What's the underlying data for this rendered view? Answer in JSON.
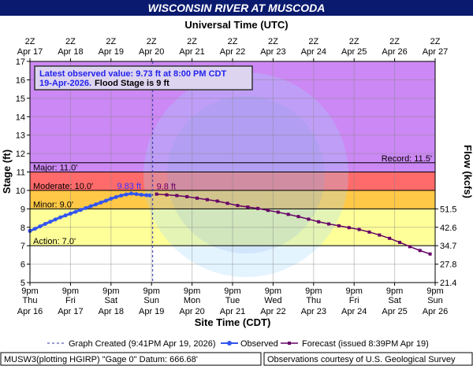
{
  "chart_data": {
    "type": "hydrograph",
    "title": "WISCONSIN RIVER AT MUSCODA",
    "top_axis_label": "Universal Time (UTC)",
    "x_label": "Site Time (CDT)",
    "y_label": "Stage (ft)",
    "xlim": [
      "2026-04-16T21:00",
      "2026-04-26T21:00"
    ],
    "xticks": [
      {
        "value": "2026-04-16T21:00",
        "label": "9pm",
        "day": "Thu",
        "date": "Apr 16",
        "utc": "2Z",
        "utc_date": "Apr 17"
      },
      {
        "value": "2026-04-17T21:00",
        "label": "9pm",
        "day": "Fri",
        "date": "Apr 17",
        "utc": "2Z",
        "utc_date": "Apr 18"
      },
      {
        "value": "2026-04-18T21:00",
        "label": "9pm",
        "day": "Sat",
        "date": "Apr 18",
        "utc": "2Z",
        "utc_date": "Apr 19"
      },
      {
        "value": "2026-04-19T21:00",
        "label": "9pm",
        "day": "Sun",
        "date": "Apr 19",
        "utc": "2Z",
        "utc_date": "Apr 20"
      },
      {
        "value": "2026-04-20T21:00",
        "label": "9pm",
        "day": "Mon",
        "date": "Apr 20",
        "utc": "2Z",
        "utc_date": "Apr 21"
      },
      {
        "value": "2026-04-21T21:00",
        "label": "9pm",
        "day": "Tue",
        "date": "Apr 21",
        "utc": "2Z",
        "utc_date": "Apr 22"
      },
      {
        "value": "2026-04-22T21:00",
        "label": "9pm",
        "day": "Wed",
        "date": "Apr 22",
        "utc": "2Z",
        "utc_date": "Apr 23"
      },
      {
        "value": "2026-04-23T21:00",
        "label": "9pm",
        "day": "Thu",
        "date": "Apr 23",
        "utc": "2Z",
        "utc_date": "Apr 24"
      },
      {
        "value": "2026-04-24T21:00",
        "label": "9pm",
        "day": "Fri",
        "date": "Apr 24",
        "utc": "2Z",
        "utc_date": "Apr 25"
      },
      {
        "value": "2026-04-25T21:00",
        "label": "9pm",
        "day": "Sat",
        "date": "Apr 25",
        "utc": "2Z",
        "utc_date": "Apr 26"
      },
      {
        "value": "2026-04-26T21:00",
        "label": "9pm",
        "day": "Sun",
        "date": "Apr 26",
        "utc": "2Z",
        "utc_date": "Apr 27"
      }
    ],
    "ylim": [
      5,
      17
    ],
    "yticks": [
      5,
      6,
      7,
      8,
      9,
      10,
      11,
      12,
      13,
      14,
      15,
      16,
      17
    ],
    "grid": true,
    "flow_axis": {
      "label": "Flow (kcfs)",
      "ticks": [
        21.4,
        27.8,
        34.7,
        42.6,
        51.5
      ],
      "stage_at_ticks": [
        5,
        6,
        7,
        8,
        9
      ]
    },
    "stages": [
      {
        "label": "Action: 7.0'",
        "value": 7,
        "color": "#ffff99"
      },
      {
        "label": "Minor: 9.0'",
        "value": 9,
        "color": "#ffc847"
      },
      {
        "label": "Moderate: 10.0'",
        "value": 10,
        "color": "#ff6a6a"
      },
      {
        "label": "Major: 11.0'",
        "value": 11,
        "color": "#cc88f4"
      },
      {
        "label": "Record: 11.5'",
        "value": 11.5
      }
    ],
    "latest": {
      "line1": "Latest observed value: 9.73 ft at 8:00 PM CDT",
      "date": "19-Apr-2026.",
      "flood": "Flood Stage is 9 ft"
    },
    "created": {
      "x": "2026-04-19T21:41",
      "label": "Graph Created (9:41PM Apr 19, 2026)",
      "color": "#3333aa"
    },
    "series": [
      {
        "name": "Observed",
        "color": "#3355ee",
        "x": [
          "2026-04-16T21:00",
          "2026-04-17T00:00",
          "2026-04-17T03:00",
          "2026-04-17T06:00",
          "2026-04-17T09:00",
          "2026-04-17T12:00",
          "2026-04-17T15:00",
          "2026-04-17T18:00",
          "2026-04-17T21:00",
          "2026-04-18T00:00",
          "2026-04-18T03:00",
          "2026-04-18T06:00",
          "2026-04-18T09:00",
          "2026-04-18T12:00",
          "2026-04-18T15:00",
          "2026-04-18T18:00",
          "2026-04-18T21:00",
          "2026-04-19T00:00",
          "2026-04-19T03:00",
          "2026-04-19T06:00",
          "2026-04-19T09:00",
          "2026-04-19T12:00",
          "2026-04-19T15:00",
          "2026-04-19T18:00",
          "2026-04-19T20:00"
        ],
        "values": [
          7.8,
          7.92,
          8.05,
          8.18,
          8.3,
          8.42,
          8.54,
          8.64,
          8.74,
          8.84,
          8.94,
          9.04,
          9.14,
          9.24,
          9.34,
          9.44,
          9.55,
          9.64,
          9.72,
          9.78,
          9.83,
          9.8,
          9.76,
          9.74,
          9.73
        ],
        "value_labels": [
          null,
          null,
          null,
          null,
          null,
          null,
          null,
          null,
          null,
          null,
          null,
          null,
          null,
          null,
          null,
          null,
          null,
          null,
          null,
          null,
          "9.83 ft",
          null,
          null,
          null,
          null
        ]
      },
      {
        "name": "Forecast (issued 8:39PM Apr 19)",
        "color": "#660066",
        "x": [
          "2026-04-20T00:00",
          "2026-04-20T06:00",
          "2026-04-20T12:00",
          "2026-04-20T18:00",
          "2026-04-21T00:00",
          "2026-04-21T06:00",
          "2026-04-21T12:00",
          "2026-04-21T18:00",
          "2026-04-22T00:00",
          "2026-04-22T06:00",
          "2026-04-22T12:00",
          "2026-04-22T18:00",
          "2026-04-23T00:00",
          "2026-04-23T06:00",
          "2026-04-23T12:00",
          "2026-04-23T18:00",
          "2026-04-24T00:00",
          "2026-04-24T06:00",
          "2026-04-24T12:00",
          "2026-04-24T18:00",
          "2026-04-25T00:00",
          "2026-04-25T06:00",
          "2026-04-25T12:00",
          "2026-04-25T18:00",
          "2026-04-26T00:00",
          "2026-04-26T06:00",
          "2026-04-26T12:00",
          "2026-04-26T18:00"
        ],
        "values": [
          9.8,
          9.76,
          9.72,
          9.66,
          9.58,
          9.5,
          9.42,
          9.3,
          9.18,
          9.1,
          9.02,
          8.92,
          8.82,
          8.7,
          8.58,
          8.44,
          8.3,
          8.18,
          8.08,
          7.98,
          7.88,
          7.74,
          7.58,
          7.4,
          7.18,
          6.95,
          6.74,
          6.55
        ],
        "value_labels": [
          "9.8 ft",
          null,
          null,
          null,
          null,
          null,
          null,
          null,
          null,
          null,
          null,
          null,
          null,
          null,
          null,
          null,
          null,
          null,
          null,
          null,
          null,
          null,
          null,
          null,
          null,
          null,
          null,
          null
        ]
      }
    ],
    "footer_left": "MUSW3(plotting HGIRP) \"Gage 0\" Datum: 666.68'",
    "footer_right": "Observations courtesy of U.S. Geological Survey"
  }
}
